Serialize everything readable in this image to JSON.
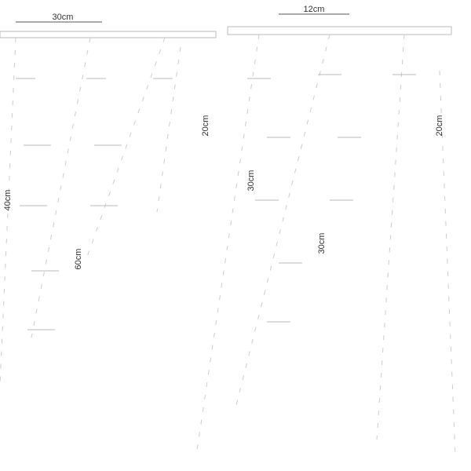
{
  "dimensions": [
    {
      "label": "30cm"
    },
    {
      "label": "12cm"
    },
    {
      "label": "20cm"
    },
    {
      "label": "40cm"
    },
    {
      "label": "60cm"
    },
    {
      "label": "30cm"
    },
    {
      "label": "30cm"
    },
    {
      "label": "20cm"
    }
  ]
}
